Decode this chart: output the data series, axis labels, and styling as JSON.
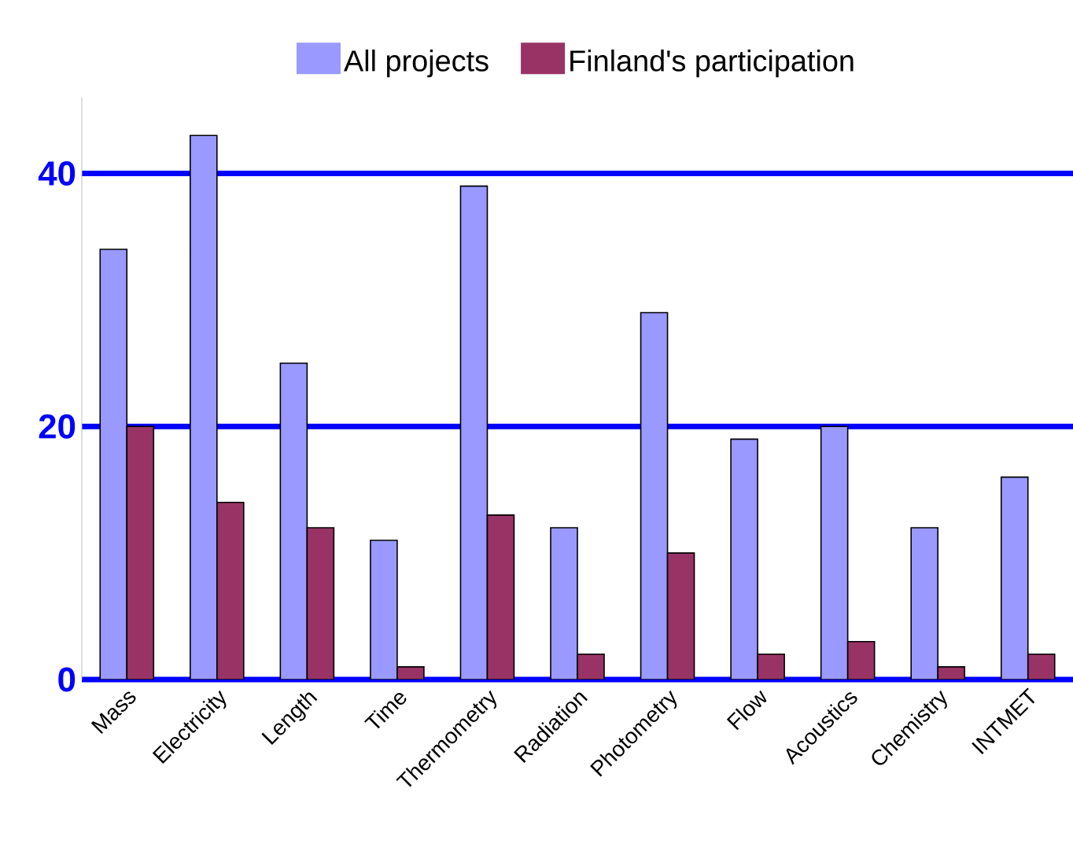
{
  "chart_data": {
    "type": "bar",
    "categories": [
      "Mass",
      "Electricity",
      "Length",
      "Time",
      "Thermometry",
      "Radiation",
      "Photometry",
      "Flow",
      "Acoustics",
      "Chemistry",
      "INTMET"
    ],
    "series": [
      {
        "name": "All projects",
        "color": "#9999ff",
        "values": [
          34,
          43,
          25,
          11,
          39,
          12,
          29,
          19,
          20,
          12,
          16
        ]
      },
      {
        "name": "Finland's participation",
        "color": "#993366",
        "values": [
          20,
          14,
          12,
          1,
          13,
          2,
          10,
          2,
          3,
          1,
          2
        ]
      }
    ],
    "ylim": [
      0,
      46
    ],
    "yticks": [
      0,
      20,
      40
    ],
    "grid": "y",
    "legend": "top"
  }
}
